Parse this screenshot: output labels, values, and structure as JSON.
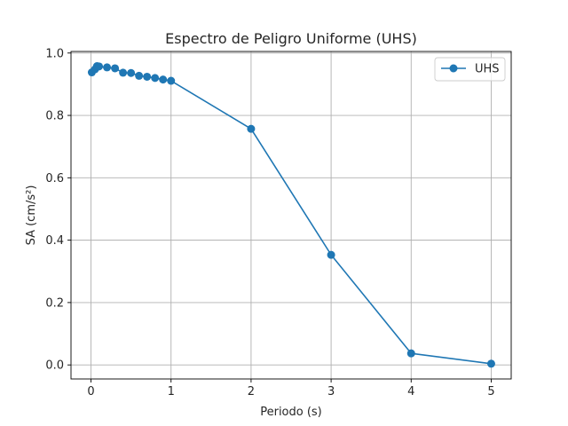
{
  "chart_data": {
    "type": "line",
    "title": "Espectro de Peligro Uniforme (UHS)",
    "xlabel": "Periodo (s)",
    "ylabel": "SA (cm/s²)",
    "xlim": [
      -0.25,
      5.25
    ],
    "ylim": [
      -0.045,
      1.005
    ],
    "xticks": [
      0,
      1,
      2,
      3,
      4,
      5
    ],
    "xtick_labels": [
      "0",
      "1",
      "2",
      "3",
      "4",
      "5"
    ],
    "yticks": [
      0.0,
      0.2,
      0.4,
      0.6,
      0.8,
      1.0
    ],
    "ytick_labels": [
      "0.0",
      "0.2",
      "0.4",
      "0.6",
      "0.8",
      "1.0"
    ],
    "grid": true,
    "legend_position": "top-right",
    "series": [
      {
        "name": "UHS",
        "color": "#1f77b4",
        "marker": "circle",
        "x": [
          0.01,
          0.05,
          0.075,
          0.1,
          0.2,
          0.3,
          0.4,
          0.5,
          0.6,
          0.7,
          0.8,
          0.9,
          1.0,
          2.0,
          3.0,
          4.0,
          5.0
        ],
        "y": [
          0.938,
          0.948,
          0.958,
          0.957,
          0.954,
          0.951,
          0.937,
          0.936,
          0.927,
          0.924,
          0.92,
          0.915,
          0.911,
          0.757,
          0.353,
          0.037,
          0.004
        ]
      }
    ]
  }
}
